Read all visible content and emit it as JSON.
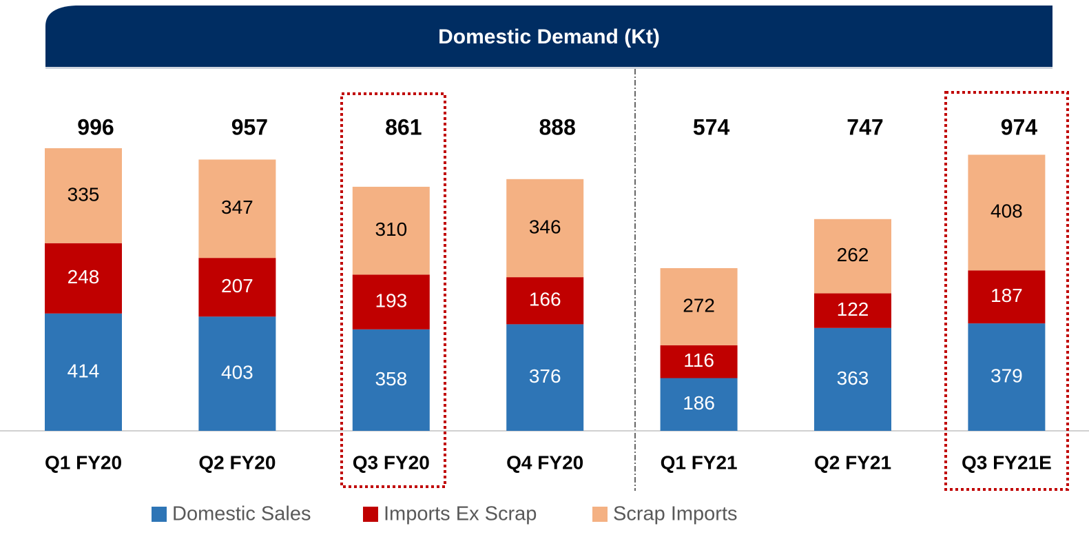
{
  "chart_data": {
    "type": "stacked_bar",
    "title": "Domestic Demand (Kt)",
    "categories": [
      "Q1 FY20",
      "Q2 FY20",
      "Q3 FY20",
      "Q4 FY20",
      "Q1 FY21",
      "Q2 FY21",
      "Q3 FY21E"
    ],
    "series": [
      {
        "name": "Domestic Sales",
        "color": "#2e75b6",
        "label_color": "#ffffff",
        "values": [
          414,
          403,
          358,
          376,
          186,
          363,
          379
        ]
      },
      {
        "name": "Imports Ex Scrap",
        "color": "#c00000",
        "label_color": "#ffffff",
        "values": [
          248,
          207,
          193,
          166,
          116,
          122,
          187
        ]
      },
      {
        "name": "Scrap Imports",
        "color": "#f4b183",
        "label_color": "#000000",
        "values": [
          335,
          347,
          310,
          346,
          272,
          262,
          408
        ]
      }
    ],
    "totals": [
      996,
      957,
      861,
      888,
      574,
      747,
      974
    ],
    "legend": "bottom"
  }
}
